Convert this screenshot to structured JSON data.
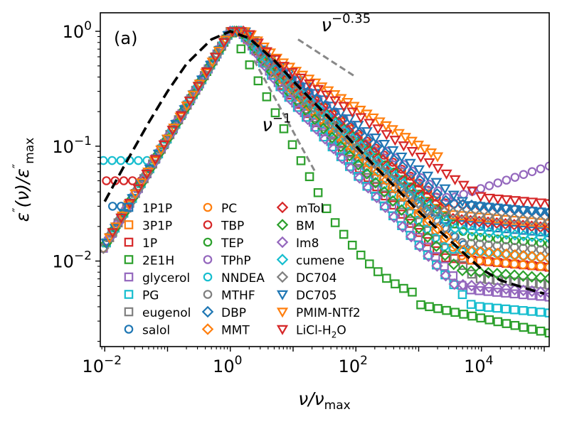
{
  "chart_data": {
    "type": "scatter",
    "panel_label": "(a)",
    "xlabel": "ν/ν",
    "xlabel_sub": "max",
    "ylabel_parts": [
      "ε",
      "″",
      "(ν)/ε",
      "″",
      "max"
    ],
    "xscale": "log",
    "yscale": "log",
    "xlim": [
      0.0085,
      120000
    ],
    "ylim": [
      0.0018,
      1.45
    ],
    "x_ticks": [
      {
        "value": 0.01,
        "base": "10",
        "exp": "−2"
      },
      {
        "value": 1,
        "base": "10",
        "exp": "0"
      },
      {
        "value": 100,
        "base": "10",
        "exp": "2"
      },
      {
        "value": 10000,
        "base": "10",
        "exp": "4"
      }
    ],
    "y_ticks": [
      {
        "value": 0.01,
        "base": "10",
        "exp": "−2"
      },
      {
        "value": 0.1,
        "base": "10",
        "exp": "−1"
      },
      {
        "value": 1,
        "base": "10",
        "exp": "0"
      }
    ],
    "legend_location": "lower-left",
    "legend_columns": 3,
    "annotations": [
      {
        "base": "ν",
        "exp": "−0.35",
        "x": 28,
        "y": 1.0
      },
      {
        "base": "ν",
        "exp": "−1",
        "x": 3.2,
        "y": 0.135
      }
    ],
    "guide_lines": [
      {
        "name": "slope-minus-0.35",
        "x": [
          12,
          100
        ],
        "y": [
          0.85,
          0.4
        ]
      },
      {
        "name": "slope-minus-1",
        "x": [
          2.4,
          22
        ],
        "y": [
          0.56,
          0.061
        ]
      }
    ],
    "master_curve": {
      "name": "reference-curve",
      "style": "dashed",
      "x": [
        0.01,
        0.02,
        0.05,
        0.1,
        0.2,
        0.5,
        1,
        2,
        5,
        10,
        20,
        50,
        100,
        200,
        500,
        1000,
        2000,
        5000,
        10000,
        20000,
        50000,
        100000
      ],
      "y": [
        0.033,
        0.066,
        0.16,
        0.3,
        0.52,
        0.85,
        1.0,
        0.87,
        0.56,
        0.37,
        0.25,
        0.15,
        0.1,
        0.067,
        0.04,
        0.027,
        0.019,
        0.012,
        0.0085,
        0.0068,
        0.0058,
        0.0052
      ]
    },
    "series": [
      {
        "name": "1P1P",
        "marker": "square",
        "color": "#1f77b4",
        "hf_slope": 0.48,
        "wing": 0.02
      },
      {
        "name": "3P1P",
        "marker": "square",
        "color": "#ff7f0e",
        "hf_slope": 0.45,
        "wing": 0.024
      },
      {
        "name": "1P",
        "marker": "square",
        "color": "#d62728",
        "hf_slope": 0.58,
        "wing": 0.01
      },
      {
        "name": "2E1H",
        "marker": "square",
        "color": "#2ca02c",
        "hf_slope": 1.02,
        "wing": 0.0042,
        "lf_floor": 0.0,
        "custom": "2E1H"
      },
      {
        "name": "glycerol",
        "marker": "square",
        "color": "#9467bd",
        "hf_slope": 0.6,
        "wing": 0.0055
      },
      {
        "name": "PG",
        "marker": "square",
        "color": "#17becf",
        "hf_slope": 0.62,
        "wing": 0.004
      },
      {
        "name": "eugenol",
        "marker": "square",
        "color": "#7f7f7f",
        "hf_slope": 0.55,
        "wing": 0.007
      },
      {
        "name": "salol",
        "marker": "circle",
        "color": "#1f77b4",
        "hf_slope": 0.5,
        "wing": 0.012,
        "lf_floor": 0.03
      },
      {
        "name": "PC",
        "marker": "circle",
        "color": "#ff7f0e",
        "hf_slope": 0.53,
        "wing": 0.01
      },
      {
        "name": "TBP",
        "marker": "circle",
        "color": "#d62728",
        "hf_slope": 0.44,
        "wing": 0.03,
        "lf_floor": 0.05
      },
      {
        "name": "TEP",
        "marker": "circle",
        "color": "#2ca02c",
        "hf_slope": 0.47,
        "wing": 0.016
      },
      {
        "name": "TPhP",
        "marker": "circle",
        "color": "#9467bd",
        "hf_slope": 0.42,
        "wing": 0.03,
        "rise": 0.065
      },
      {
        "name": "NNDEA",
        "marker": "circle",
        "color": "#17becf",
        "hf_slope": 0.55,
        "wing": 0.012,
        "lf_floor": 0.075
      },
      {
        "name": "MTHF",
        "marker": "circle",
        "color": "#7f7f7f",
        "hf_slope": 0.5,
        "wing": 0.014
      },
      {
        "name": "DBP",
        "marker": "diamond",
        "color": "#1f77b4",
        "hf_slope": 0.43,
        "wing": 0.03
      },
      {
        "name": "MMT",
        "marker": "diamond",
        "color": "#ff7f0e",
        "hf_slope": 0.52,
        "wing": 0.012
      },
      {
        "name": "mTol",
        "marker": "diamond",
        "color": "#d62728",
        "hf_slope": 0.46,
        "wing": 0.022
      },
      {
        "name": "BM",
        "marker": "diamond",
        "color": "#2ca02c",
        "hf_slope": 0.57,
        "wing": 0.008
      },
      {
        "name": "Im8",
        "marker": "diamond",
        "color": "#9467bd",
        "hf_slope": 0.62,
        "wing": 0.006
      },
      {
        "name": "cumene",
        "marker": "diamond",
        "color": "#17becf",
        "hf_slope": 0.48,
        "wing": 0.018
      },
      {
        "name": "DC704",
        "marker": "diamond",
        "color": "#7f7f7f",
        "hf_slope": 0.5,
        "wing": 0.025
      },
      {
        "name": "DC705",
        "marker": "triangle-down",
        "color": "#1f77b4",
        "hf_slope": 0.4,
        "wing": 0.03
      },
      {
        "name": "PMIM-NTf2",
        "marker": "triangle-down",
        "color": "#ff7f0e",
        "hf_slope": 0.33,
        "wing": 0.0,
        "x_max": 2000
      },
      {
        "name": "LiCl-H2O",
        "label_base": "LiCl-H",
        "label_sub": "2",
        "label_tail": "O",
        "marker": "triangle-down",
        "color": "#d62728",
        "hf_slope": 0.36,
        "wing": 0.036
      }
    ]
  }
}
